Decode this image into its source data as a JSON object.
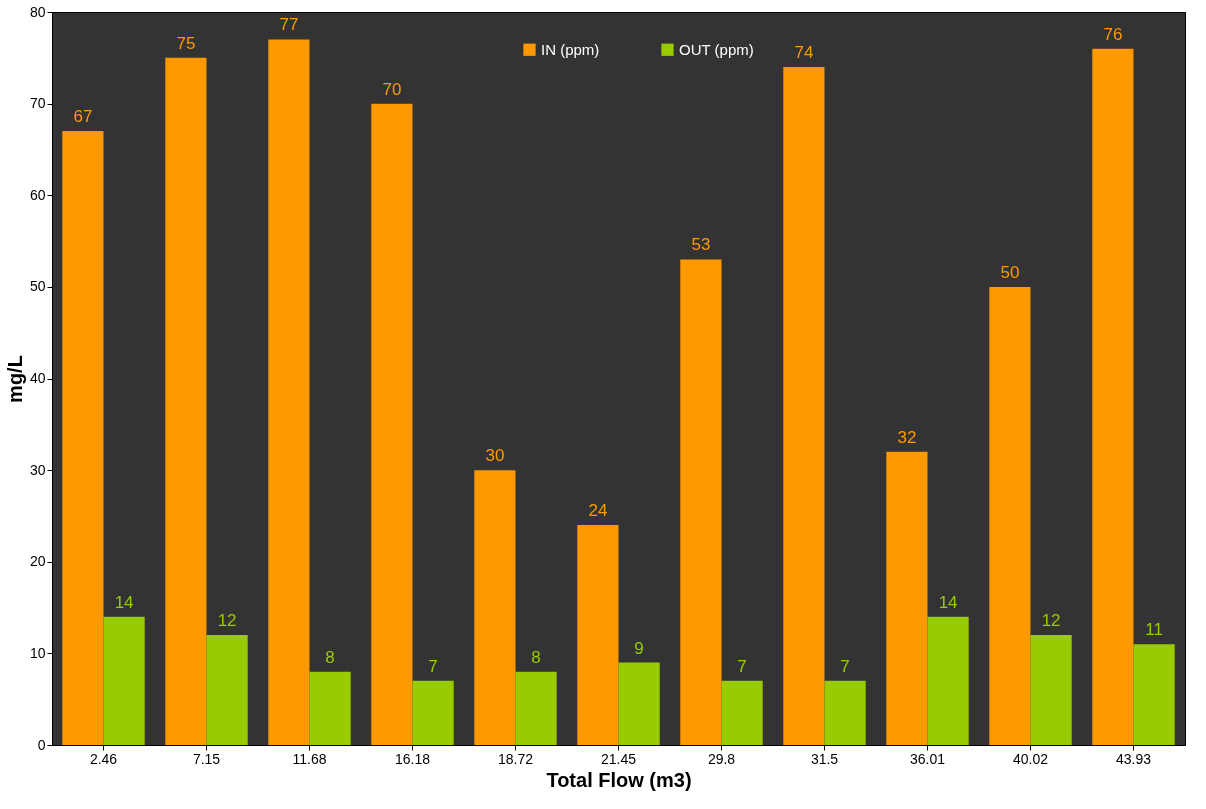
{
  "chart_data": {
    "type": "bar",
    "xlabel": "Total Flow (m3)",
    "ylabel": "mg/L",
    "categories": [
      "2.46",
      "7.15",
      "11.68",
      "16.18",
      "18.72",
      "21.45",
      "29.8",
      "31.5",
      "36.01",
      "40.02",
      "43.93"
    ],
    "series": [
      {
        "name": "IN (ppm)",
        "color": "#ff9900",
        "values": [
          67,
          75,
          77,
          70,
          30,
          24,
          53,
          74,
          32,
          50,
          76
        ]
      },
      {
        "name": "OUT (ppm)",
        "color": "#99cc00",
        "values": [
          14,
          12,
          8,
          7,
          8,
          9,
          7,
          7,
          14,
          12,
          11
        ]
      }
    ],
    "ylim": [
      0,
      80
    ],
    "yticks": [
      0,
      10,
      20,
      30,
      40,
      50,
      60,
      70,
      80
    ],
    "grid": false,
    "legend": "top",
    "data_labels": true
  }
}
